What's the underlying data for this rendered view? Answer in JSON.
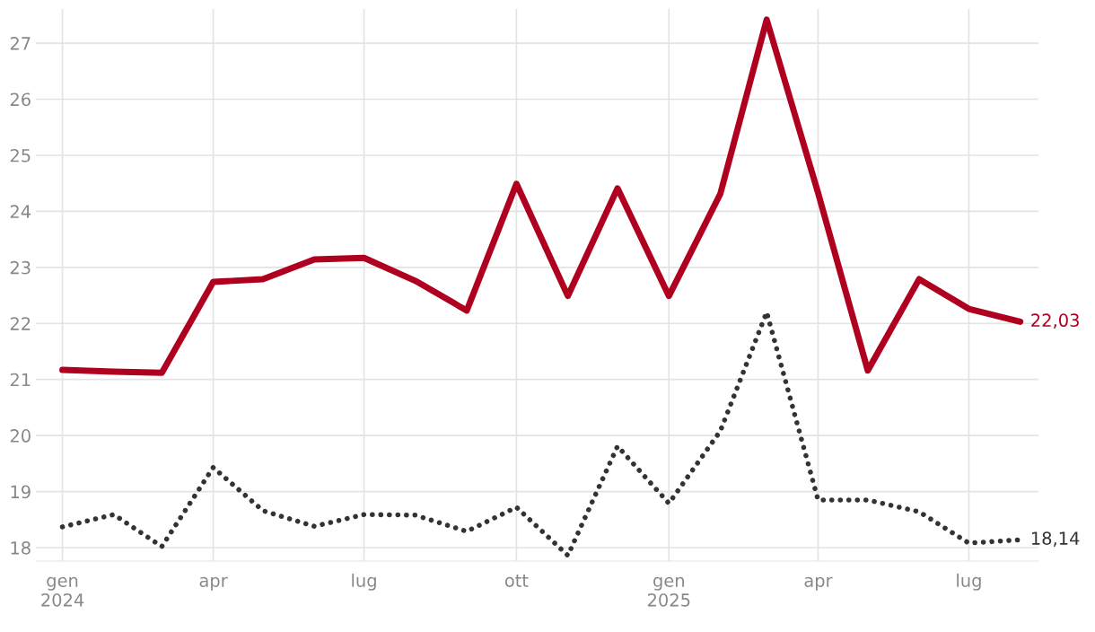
{
  "chart_data": {
    "type": "line",
    "x": [
      "2024-01-01",
      "2024-02-01",
      "2024-03-01",
      "2024-04-01",
      "2024-05-01",
      "2024-06-01",
      "2024-07-01",
      "2024-08-01",
      "2024-09-01",
      "2024-10-01",
      "2024-11-01",
      "2024-12-01",
      "2025-01-01",
      "2025-02-01",
      "2025-03-01",
      "2025-04-01",
      "2025-05-01",
      "2025-06-01",
      "2025-07-01",
      "2025-08-01"
    ],
    "series": [
      {
        "color": "#b00020",
        "line_style": "solid",
        "values": [
          21.17,
          21.14,
          21.12,
          22.74,
          22.79,
          23.14,
          23.17,
          22.76,
          22.23,
          24.49,
          22.49,
          24.41,
          22.49,
          24.31,
          27.42,
          24.33,
          21.16,
          22.79,
          22.26,
          22.03
        ]
      },
      {
        "color": "#333333",
        "line_style": "dotted",
        "values": [
          18.37,
          18.59,
          18.02,
          19.43,
          18.66,
          18.38,
          18.59,
          18.58,
          18.29,
          18.72,
          17.86,
          19.81,
          18.79,
          20.08,
          22.2,
          18.85,
          18.85,
          18.64,
          18.08,
          18.14
        ]
      }
    ],
    "annotations": [
      {
        "text": "22,03",
        "x": "2025-08-01",
        "y": 22.03
      },
      {
        "text": "18,14",
        "x": "2025-08-01",
        "y": 18.14
      }
    ],
    "xlim": [
      "2023-12-16",
      "2025-08-12"
    ],
    "xticks": [
      {
        "value": "2024-01-01",
        "label": "gen\n2024"
      },
      {
        "value": "2024-04-01",
        "label": "apr"
      },
      {
        "value": "2024-07-01",
        "label": "lug"
      },
      {
        "value": "2024-10-01",
        "label": "ott"
      },
      {
        "value": "2025-01-01",
        "label": "gen\n2025"
      },
      {
        "value": "2025-04-01",
        "label": "apr"
      },
      {
        "value": "2025-07-01",
        "label": "lug"
      }
    ],
    "ylim": [
      17.76,
      27.61
    ],
    "yticks": [
      18,
      19,
      20,
      21,
      22,
      23,
      24,
      25,
      26,
      27
    ],
    "grid": true,
    "legend": false
  }
}
